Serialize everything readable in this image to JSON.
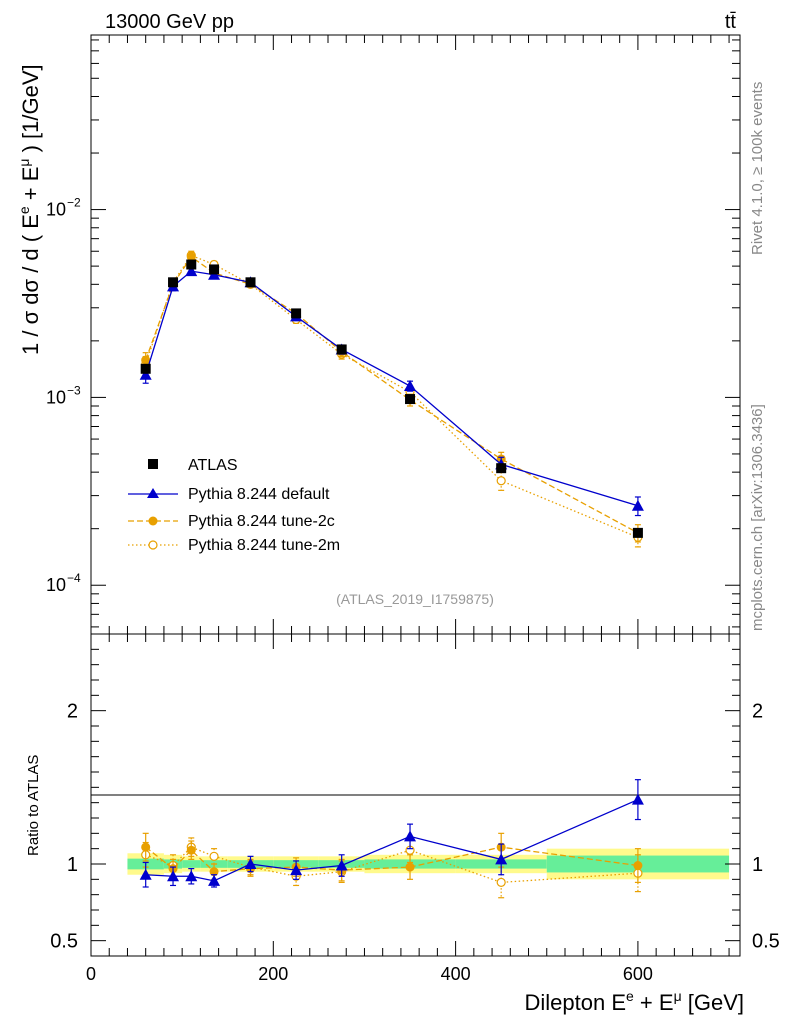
{
  "header": {
    "left": "13000 GeV pp",
    "right": "tt̄"
  },
  "side_labels": {
    "top": "Rivet 4.1.0, ≥ 100k events",
    "bottom": "mcplots.cern.ch [arXiv:1306.3436]"
  },
  "analysis_id": "(ATLAS_2019_I1759875)",
  "colors": {
    "data": "#000000",
    "default": "#0000cc",
    "tune2c": "#e8a000",
    "band_inner": "#66ee99",
    "band_outer": "#fffa8c"
  },
  "chart_data": [
    {
      "type": "line",
      "panel": "main",
      "ylabel": "1 / σ dσ / d ( E^e + E^μ ) [1/GeV]",
      "yscale": "log",
      "ylim": [
        5.5e-05,
        0.085
      ],
      "xlim": [
        0,
        712
      ],
      "y_ticks": [
        {
          "value": 0.01,
          "mantissa": "10",
          "exp": "−2"
        },
        {
          "value": 0.001,
          "mantissa": "10",
          "exp": "−3"
        },
        {
          "value": 0.0001,
          "mantissa": "10",
          "exp": "−4"
        }
      ],
      "legend_position": "lower-left",
      "series": [
        {
          "name": "ATLAS",
          "style": "square",
          "x": [
            60,
            90,
            110,
            135,
            175,
            225,
            275,
            350,
            450,
            600
          ],
          "y": [
            0.00142,
            0.0041,
            0.0051,
            0.0048,
            0.0041,
            0.0028,
            0.0018,
            0.00098,
            0.00042,
            0.00019
          ]
        },
        {
          "name": "Pythia 8.244 default",
          "style": "triangle",
          "x": [
            60,
            90,
            110,
            135,
            175,
            225,
            275,
            350,
            450,
            600
          ],
          "y": [
            0.00132,
            0.0039,
            0.0047,
            0.0045,
            0.0041,
            0.0027,
            0.0018,
            0.00115,
            0.00044,
            0.000265
          ],
          "err": [
            0.00013,
            0.0002,
            0.0002,
            0.00015,
            0.00015,
            0.00012,
            0.0001,
            7e-05,
            4e-05,
            3e-05
          ]
        },
        {
          "name": "Pythia 8.244 tune-2c",
          "style": "filled-circle",
          "x": [
            60,
            90,
            110,
            135,
            175,
            225,
            275,
            350,
            450,
            600
          ],
          "y": [
            0.00158,
            0.004,
            0.0056,
            0.0046,
            0.004,
            0.0028,
            0.00175,
            0.00097,
            0.00047,
            0.00019
          ],
          "err": [
            0.00015,
            0.0002,
            0.0003,
            0.0002,
            0.00015,
            0.00012,
            0.0001,
            7e-05,
            4e-05,
            2e-05
          ]
        },
        {
          "name": "Pythia 8.244 tune-2m",
          "style": "open-circle",
          "x": [
            60,
            90,
            110,
            135,
            175,
            225,
            275,
            350,
            450,
            600
          ],
          "y": [
            0.0015,
            0.0041,
            0.0057,
            0.0051,
            0.004,
            0.0026,
            0.0017,
            0.00107,
            0.00036,
            0.00018
          ],
          "err": [
            0.00015,
            0.0002,
            0.0003,
            0.0002,
            0.00015,
            0.00012,
            0.0001,
            7e-05,
            4e-05,
            2e-05
          ]
        }
      ]
    },
    {
      "type": "line",
      "panel": "ratio",
      "ylabel": "Ratio to ATLAS",
      "xlabel": "Dilepton E^e + E^μ [GeV]",
      "xlim": [
        0,
        712
      ],
      "ylim": [
        0.4,
        2.5
      ],
      "x_ticks": [
        0,
        200,
        400,
        600
      ],
      "y_ticks": [
        0.5,
        1,
        2
      ],
      "bands": [
        {
          "x0": 40,
          "x1": 80,
          "inner": 0.035,
          "outer": 0.07
        },
        {
          "x0": 80,
          "x1": 100,
          "inner": 0.03,
          "outer": 0.06
        },
        {
          "x0": 100,
          "x1": 120,
          "inner": 0.025,
          "outer": 0.05
        },
        {
          "x0": 120,
          "x1": 150,
          "inner": 0.025,
          "outer": 0.05
        },
        {
          "x0": 150,
          "x1": 200,
          "inner": 0.025,
          "outer": 0.05
        },
        {
          "x0": 200,
          "x1": 250,
          "inner": 0.025,
          "outer": 0.05
        },
        {
          "x0": 250,
          "x1": 300,
          "inner": 0.025,
          "outer": 0.05
        },
        {
          "x0": 300,
          "x1": 400,
          "inner": 0.03,
          "outer": 0.06
        },
        {
          "x0": 400,
          "x1": 500,
          "inner": 0.03,
          "outer": 0.06
        },
        {
          "x0": 500,
          "x1": 700,
          "inner": 0.055,
          "outer": 0.1
        }
      ],
      "series": [
        {
          "name": "Pythia 8.244 default",
          "style": "triangle",
          "x": [
            60,
            90,
            110,
            135,
            175,
            225,
            275,
            350,
            450,
            600
          ],
          "y": [
            0.93,
            0.92,
            0.92,
            0.89,
            1.0,
            0.96,
            0.99,
            1.18,
            1.03,
            1.42
          ],
          "err": [
            0.08,
            0.06,
            0.05,
            0.04,
            0.05,
            0.06,
            0.07,
            0.08,
            0.1,
            0.13
          ]
        },
        {
          "name": "Pythia 8.244 tune-2c",
          "style": "filled-circle",
          "x": [
            60,
            90,
            110,
            135,
            175,
            225,
            275,
            350,
            450,
            600
          ],
          "y": [
            1.11,
            0.97,
            1.09,
            0.95,
            0.97,
            0.98,
            0.96,
            0.98,
            1.11,
            0.99
          ],
          "err": [
            0.09,
            0.06,
            0.06,
            0.05,
            0.05,
            0.06,
            0.07,
            0.08,
            0.09,
            0.11
          ]
        },
        {
          "name": "Pythia 8.244 tune-2m",
          "style": "open-circle",
          "x": [
            60,
            90,
            110,
            135,
            175,
            225,
            275,
            350,
            450,
            600
          ],
          "y": [
            1.06,
            0.99,
            1.11,
            1.05,
            0.98,
            0.92,
            0.95,
            1.09,
            0.88,
            0.94
          ],
          "err": [
            0.08,
            0.07,
            0.06,
            0.05,
            0.05,
            0.06,
            0.07,
            0.08,
            0.1,
            0.12
          ]
        }
      ]
    }
  ]
}
